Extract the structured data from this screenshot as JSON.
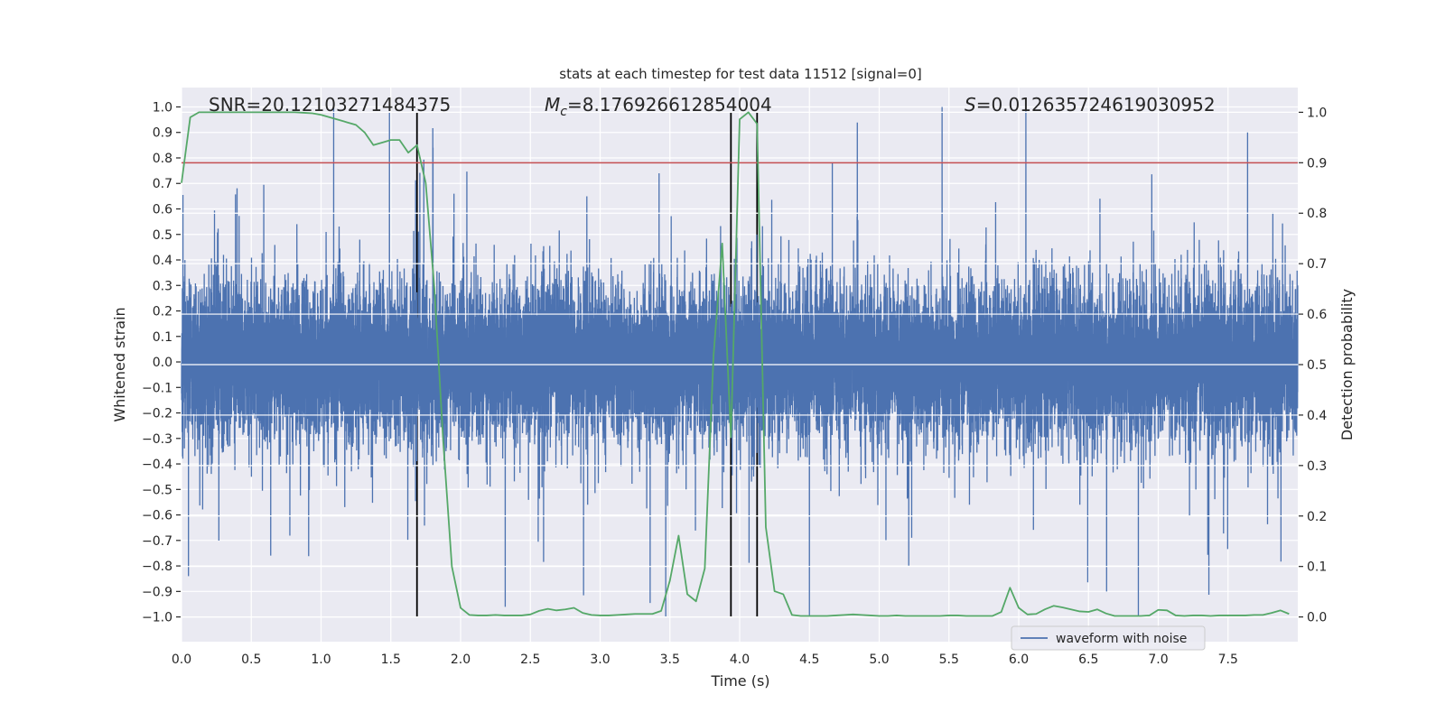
{
  "chart_data": {
    "type": "line",
    "title": "stats at each timestep for test data 11512 [signal=0]",
    "xlabel": "Time (s)",
    "ylabel_left": "Whitened strain",
    "ylabel_right": "Detection probability",
    "xlim": [
      0,
      8.0
    ],
    "ylim_left": [
      -1.097,
      1.076
    ],
    "ylim_right": [
      -0.049,
      1.049
    ],
    "grid": true,
    "x_ticks": [
      "0.0",
      "0.5",
      "1.0",
      "1.5",
      "2.0",
      "2.5",
      "3.0",
      "3.5",
      "4.0",
      "4.5",
      "5.0",
      "5.5",
      "6.0",
      "6.5",
      "7.0",
      "7.5"
    ],
    "y_left_ticks": [
      "1.0",
      "0.9",
      "0.8",
      "0.7",
      "0.6",
      "0.5",
      "0.4",
      "0.3",
      "0.2",
      "0.1",
      "0.0",
      "−0.1",
      "−0.2",
      "−0.3",
      "−0.4",
      "−0.5",
      "−0.6",
      "−0.7",
      "−0.8",
      "−0.9",
      "−1.0"
    ],
    "y_right_ticks": [
      "1.0",
      "0.9",
      "0.8",
      "0.7",
      "0.6",
      "0.5",
      "0.4",
      "0.3",
      "0.2",
      "0.1",
      "0.0"
    ],
    "annotations": {
      "snr": "SNR=20.12103271484375",
      "mc_symbol": "M",
      "mc_sub": "c",
      "mc_value": "=8.176926612854004",
      "s_symbol": "S",
      "s_value": "=0.012635724619030952"
    },
    "legend": {
      "position": "lower-right",
      "entries": [
        "waveform with noise"
      ]
    },
    "series": [
      {
        "name": "waveform with noise",
        "axis": "left",
        "color": "#4c72b0",
        "kind": "noise",
        "duration_s": 8.0,
        "n_samples": 16384,
        "seed": 11512,
        "typical_amplitude": 0.15,
        "extremes": [
          [
            1.49,
            0.98
          ],
          [
            4.5,
            -1.0
          ],
          [
            0.05,
            -0.84
          ],
          [
            7.64,
            0.9
          ],
          [
            6.63,
            -0.9
          ]
        ]
      },
      {
        "name": "detection probability",
        "axis": "right",
        "color": "#55a868",
        "dt": 0.0625,
        "values": [
          0.86,
          0.99,
          1.0,
          1.0,
          1.0,
          1.0,
          1.0,
          1.0,
          1.0,
          1.0,
          1.0,
          1.0,
          1.0,
          1.0,
          0.999,
          0.998,
          0.995,
          0.99,
          0.985,
          0.98,
          0.975,
          0.96,
          0.935,
          0.94,
          0.945,
          0.945,
          0.92,
          0.935,
          0.86,
          0.65,
          0.35,
          0.1,
          0.018,
          0.004,
          0.003,
          0.003,
          0.004,
          0.003,
          0.003,
          0.003,
          0.005,
          0.012,
          0.016,
          0.013,
          0.015,
          0.018,
          0.008,
          0.004,
          0.003,
          0.003,
          0.004,
          0.005,
          0.006,
          0.006,
          0.006,
          0.012,
          0.072,
          0.161,
          0.045,
          0.031,
          0.096,
          0.517,
          0.74,
          0.356,
          0.986,
          1.0,
          0.977,
          0.178,
          0.051,
          0.045,
          0.004,
          0.002,
          0.002,
          0.002,
          0.002,
          0.003,
          0.004,
          0.005,
          0.004,
          0.003,
          0.002,
          0.002,
          0.003,
          0.002,
          0.002,
          0.002,
          0.002,
          0.002,
          0.003,
          0.003,
          0.002,
          0.002,
          0.002,
          0.002,
          0.01,
          0.058,
          0.018,
          0.005,
          0.006,
          0.015,
          0.022,
          0.019,
          0.015,
          0.011,
          0.01,
          0.015,
          0.007,
          0.002,
          0.002,
          0.002,
          0.002,
          0.003,
          0.014,
          0.013,
          0.003,
          0.002,
          0.003,
          0.003,
          0.002,
          0.003,
          0.003,
          0.003,
          0.003,
          0.004,
          0.004,
          0.008,
          0.013,
          0.006
        ]
      }
    ],
    "threshold": {
      "axis": "right",
      "value": 0.9,
      "color": "#c44e52"
    },
    "vertical_markers": {
      "color": "#000000",
      "x": [
        1.6875,
        3.9375,
        4.125
      ],
      "y_range_right": [
        0,
        1
      ]
    }
  }
}
